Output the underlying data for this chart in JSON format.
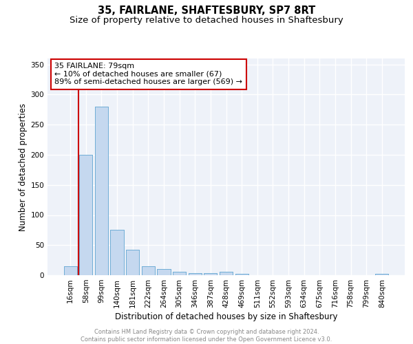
{
  "title1": "35, FAIRLANE, SHAFTESBURY, SP7 8RT",
  "title2": "Size of property relative to detached houses in Shaftesbury",
  "xlabel": "Distribution of detached houses by size in Shaftesbury",
  "ylabel": "Number of detached properties",
  "categories": [
    "16sqm",
    "58sqm",
    "99sqm",
    "140sqm",
    "181sqm",
    "222sqm",
    "264sqm",
    "305sqm",
    "346sqm",
    "387sqm",
    "428sqm",
    "469sqm",
    "511sqm",
    "552sqm",
    "593sqm",
    "634sqm",
    "675sqm",
    "716sqm",
    "758sqm",
    "799sqm",
    "840sqm"
  ],
  "values": [
    15,
    200,
    280,
    75,
    42,
    15,
    10,
    6,
    4,
    4,
    6,
    2,
    0,
    0,
    0,
    0,
    0,
    0,
    0,
    0,
    2
  ],
  "bar_color": "#c5d8ef",
  "bar_edge_color": "#6aaad4",
  "ylim": [
    0,
    360
  ],
  "yticks": [
    0,
    50,
    100,
    150,
    200,
    250,
    300,
    350
  ],
  "vline_x": 0.52,
  "vline_color": "#cc0000",
  "annotation_text": "35 FAIRLANE: 79sqm\n← 10% of detached houses are smaller (67)\n89% of semi-detached houses are larger (569) →",
  "footer1": "Contains HM Land Registry data © Crown copyright and database right 2024.",
  "footer2": "Contains public sector information licensed under the Open Government Licence v3.0.",
  "background_color": "#eef2f9",
  "grid_color": "#ffffff",
  "title_fontsize": 10.5,
  "subtitle_fontsize": 9.5,
  "tick_fontsize": 7.5,
  "ylabel_fontsize": 8.5,
  "xlabel_fontsize": 8.5,
  "annotation_fontsize": 8
}
